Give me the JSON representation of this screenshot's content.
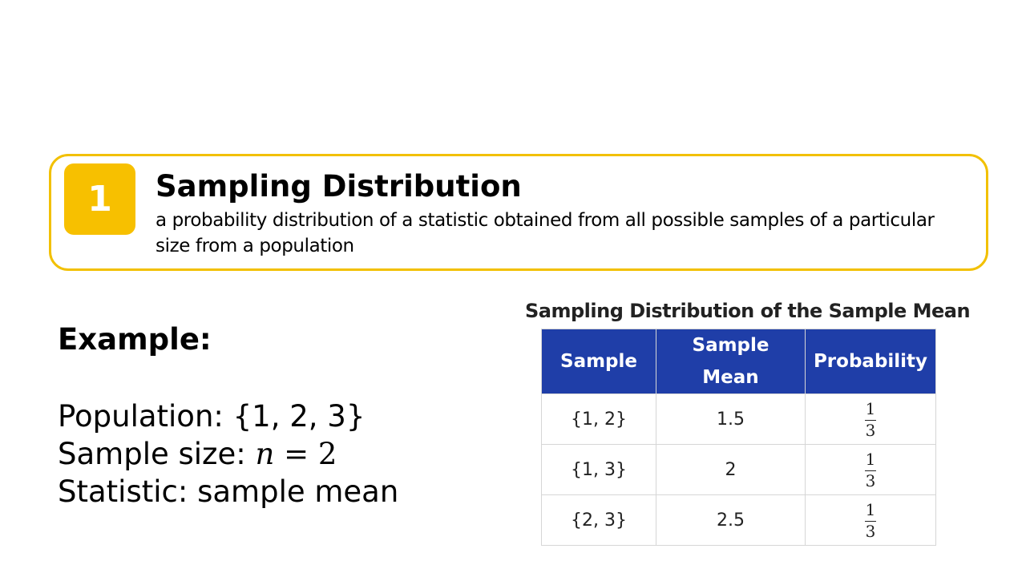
{
  "definition": {
    "number": "1",
    "title": "Sampling Distribution",
    "text": "a probability distribution of a statistic obtained from all possible samples of a particular size from a population",
    "accent_color": "#f7c000"
  },
  "example": {
    "heading": "Example:",
    "population_label": "Population: ",
    "population_value": "{1, 2, 3}",
    "sample_size_label": "Sample size: ",
    "sample_size_var": "n",
    "sample_size_eq": " = 2",
    "statistic_label": "Statistic: ",
    "statistic_value": "sample mean"
  },
  "table": {
    "title": "Sampling Distribution of the Sample Mean",
    "header_color": "#1f3ea8",
    "headers": [
      "Sample",
      "Sample",
      "Mean",
      "Probability"
    ],
    "rows": [
      {
        "sample": "{1, 2}",
        "mean": "1.5",
        "prob_num": "1",
        "prob_den": "3"
      },
      {
        "sample": "{1, 3}",
        "mean": "2",
        "prob_num": "1",
        "prob_den": "3"
      },
      {
        "sample": "{2, 3}",
        "mean": "2.5",
        "prob_num": "1",
        "prob_den": "3"
      }
    ]
  }
}
